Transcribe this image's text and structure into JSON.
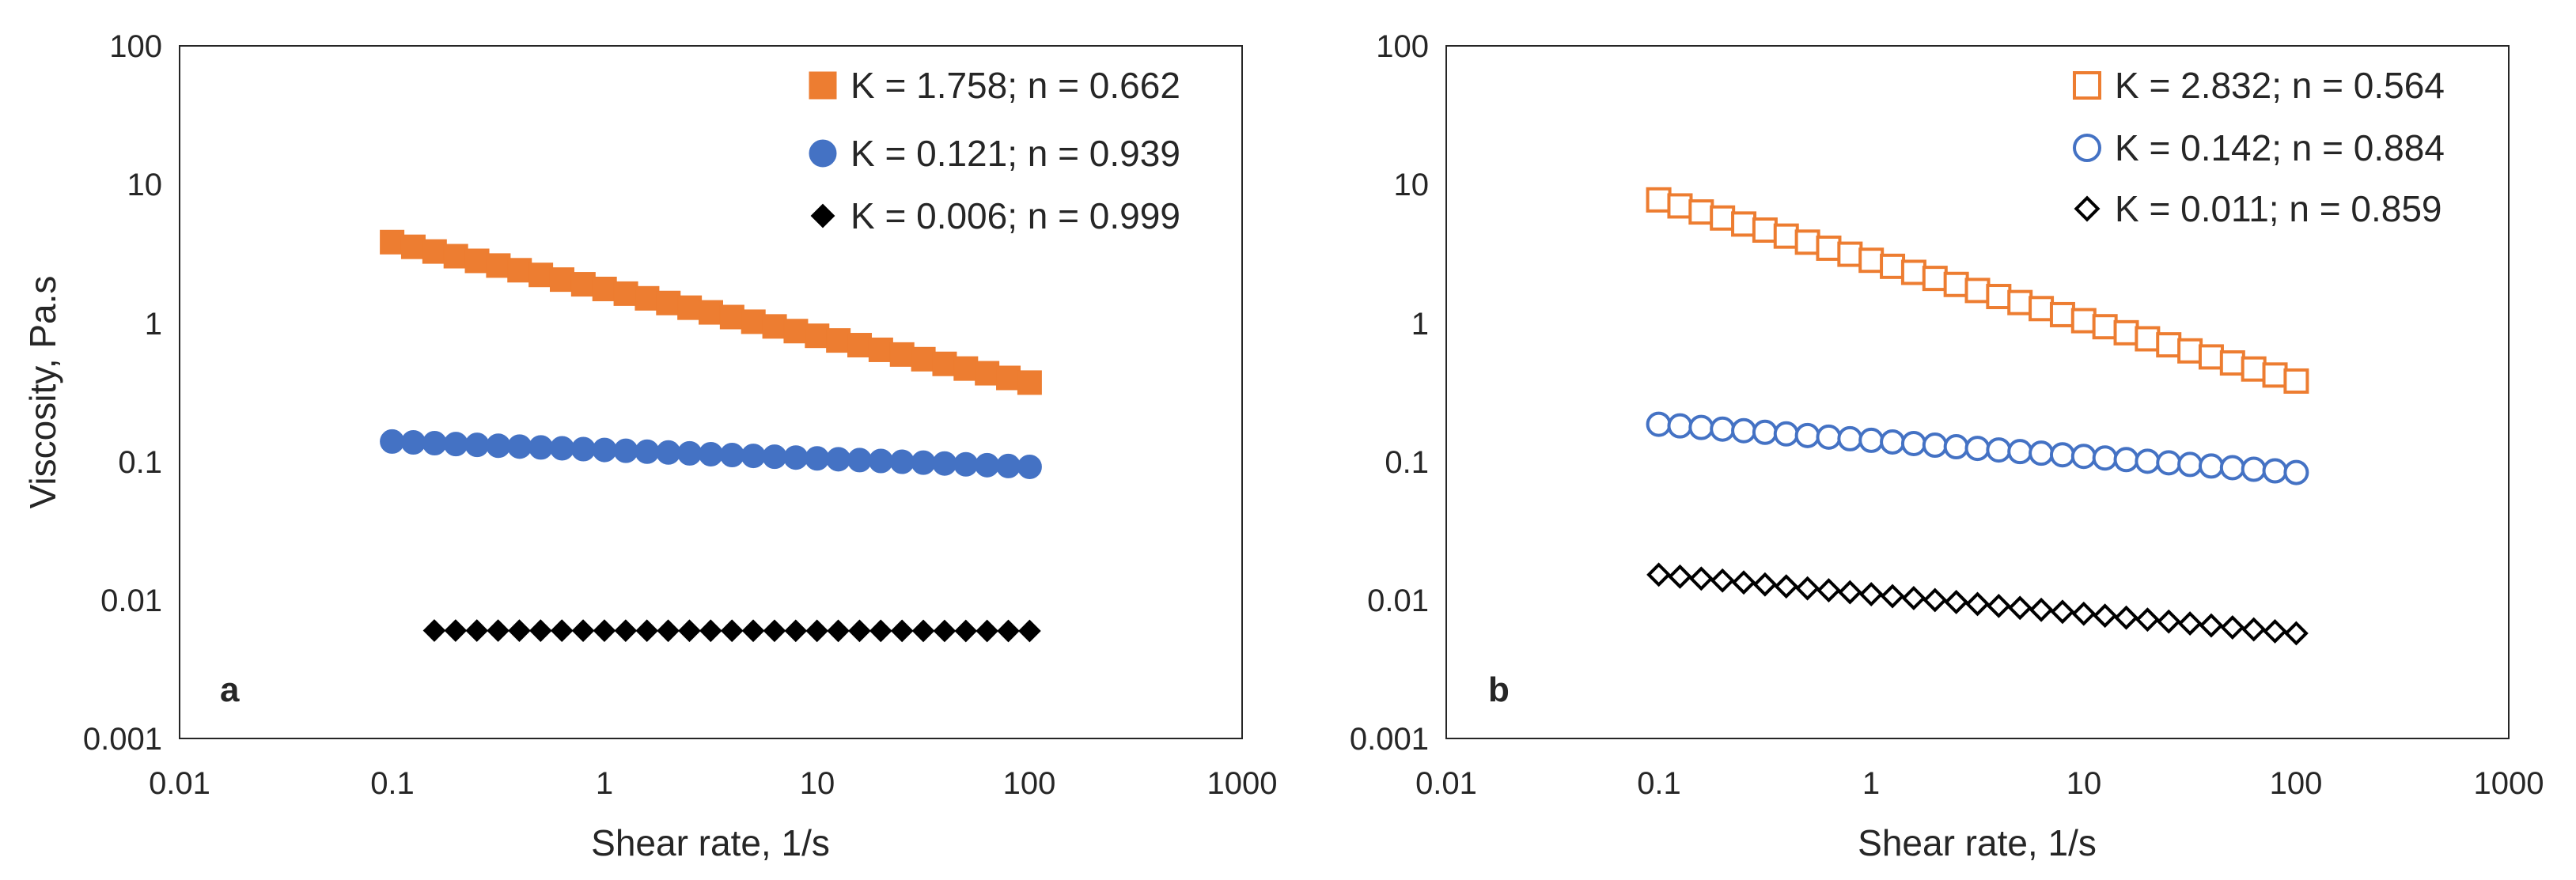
{
  "chart_data": [
    {
      "type": "scatter",
      "panel": "a",
      "xscale": "log",
      "yscale": "log",
      "xlim": [
        0.01,
        1000
      ],
      "ylim": [
        0.001,
        100
      ],
      "xticks": [
        "0.01",
        "0.1",
        "1",
        "10",
        "100",
        "1000"
      ],
      "yticks": [
        "0.001",
        "0.01",
        "0.1",
        "1",
        "10",
        "100"
      ],
      "xlabel": "Shear rate, 1/s",
      "ylabel": "Viscosity, Pa.s",
      "legend_position": "top-right",
      "series": [
        {
          "name": "K = 1.758; n = 0.662",
          "marker": "square",
          "filled": true,
          "color": "#ED7D31",
          "K": 1.758,
          "n": 0.662,
          "x_start": 0.1,
          "x_end": 100,
          "count": 31
        },
        {
          "name": "K = 0.121; n = 0.939",
          "marker": "circle",
          "filled": true,
          "color": "#4472C4",
          "K": 0.121,
          "n": 0.939,
          "x_start": 0.1,
          "x_end": 100,
          "count": 31
        },
        {
          "name": "K = 0.006; n = 0.999",
          "marker": "diamond",
          "filled": true,
          "color": "#000000",
          "K": 0.006,
          "n": 0.999,
          "x_start": 0.158,
          "x_end": 100,
          "count": 29
        }
      ]
    },
    {
      "type": "scatter",
      "panel": "b",
      "xscale": "log",
      "yscale": "log",
      "xlim": [
        0.01,
        1000
      ],
      "ylim": [
        0.001,
        100
      ],
      "xticks": [
        "0.01",
        "0.1",
        "1",
        "10",
        "100",
        "1000"
      ],
      "yticks": [
        "0.001",
        "0.01",
        "0.1",
        "1",
        "10",
        "100"
      ],
      "xlabel": "Shear rate, 1/s",
      "ylabel": "",
      "legend_position": "top-right",
      "series": [
        {
          "name": "K = 2.832; n = 0.564",
          "marker": "square",
          "filled": false,
          "color": "#ED7D31",
          "K": 2.832,
          "n": 0.564,
          "x_start": 0.1,
          "x_end": 100,
          "count": 31
        },
        {
          "name": "K = 0.142; n = 0.884",
          "marker": "circle",
          "filled": false,
          "color": "#4472C4",
          "K": 0.142,
          "n": 0.884,
          "x_start": 0.1,
          "x_end": 100,
          "count": 31
        },
        {
          "name": "K = 0.011; n = 0.859",
          "marker": "diamond",
          "filled": false,
          "color": "#000000",
          "K": 0.011,
          "n": 0.859,
          "x_start": 0.1,
          "x_end": 100,
          "count": 31
        }
      ]
    }
  ]
}
